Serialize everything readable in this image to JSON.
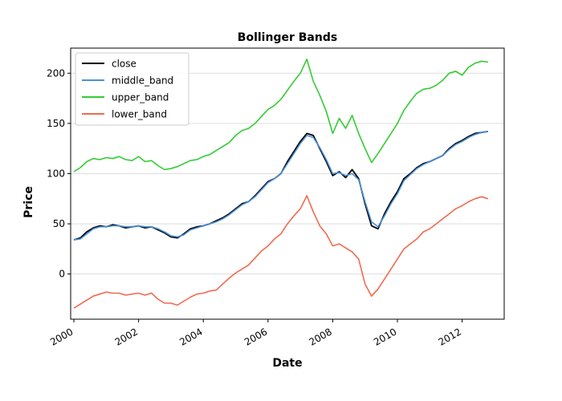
{
  "chart_data": {
    "type": "line",
    "title": "Bollinger Bands",
    "xlabel": "Date",
    "ylabel": "Price",
    "xlim": [
      1999.9,
      2013.3
    ],
    "ylim": [
      -45,
      225
    ],
    "x_ticks": [
      2000,
      2002,
      2004,
      2006,
      2008,
      2010,
      2012
    ],
    "y_ticks": [
      0,
      50,
      100,
      150,
      200
    ],
    "grid": "horizontal",
    "legend_position": "top-left",
    "x": [
      2000.0,
      2000.2,
      2000.4,
      2000.6,
      2000.8,
      2001.0,
      2001.2,
      2001.4,
      2001.6,
      2001.8,
      2002.0,
      2002.2,
      2002.4,
      2002.6,
      2002.8,
      2003.0,
      2003.2,
      2003.4,
      2003.6,
      2003.8,
      2004.0,
      2004.2,
      2004.4,
      2004.6,
      2004.8,
      2005.0,
      2005.2,
      2005.4,
      2005.6,
      2005.8,
      2006.0,
      2006.2,
      2006.4,
      2006.6,
      2006.8,
      2007.0,
      2007.2,
      2007.4,
      2007.6,
      2007.8,
      2008.0,
      2008.2,
      2008.4,
      2008.6,
      2008.8,
      2009.0,
      2009.2,
      2009.4,
      2009.6,
      2009.8,
      2010.0,
      2010.2,
      2010.4,
      2010.6,
      2010.8,
      2011.0,
      2011.2,
      2011.4,
      2011.6,
      2011.8,
      2012.0,
      2012.2,
      2012.4,
      2012.6,
      2012.8
    ],
    "series": [
      {
        "name": "close",
        "color": "#000000",
        "values": [
          34,
          36,
          42,
          46,
          48,
          47,
          49,
          48,
          46,
          47,
          48,
          46,
          47,
          44,
          41,
          37,
          36,
          40,
          45,
          47,
          48,
          50,
          53,
          56,
          60,
          65,
          70,
          72,
          78,
          85,
          92,
          95,
          100,
          112,
          122,
          132,
          140,
          138,
          125,
          112,
          98,
          102,
          96,
          104,
          95,
          70,
          48,
          45,
          60,
          72,
          82,
          95,
          100,
          106,
          110,
          112,
          115,
          118,
          125,
          130,
          133,
          137,
          140,
          141,
          142
        ]
      },
      {
        "name": "middle_band",
        "color": "#4a90d9",
        "values": [
          34,
          35,
          40,
          45,
          47,
          47,
          48,
          48,
          47,
          47,
          48,
          47,
          47,
          45,
          42,
          38,
          37,
          39,
          44,
          46,
          48,
          50,
          52,
          55,
          59,
          64,
          69,
          72,
          77,
          84,
          91,
          95,
          100,
          110,
          120,
          130,
          138,
          136,
          126,
          114,
          100,
          101,
          98,
          100,
          94,
          72,
          52,
          47,
          58,
          70,
          80,
          93,
          99,
          105,
          109,
          112,
          115,
          118,
          124,
          129,
          132,
          136,
          139,
          141,
          142
        ]
      },
      {
        "name": "upper_band",
        "color": "#33cc33",
        "values": [
          102,
          106,
          112,
          115,
          114,
          116,
          115,
          117,
          114,
          113,
          117,
          112,
          113,
          108,
          104,
          105,
          107,
          110,
          113,
          114,
          117,
          119,
          123,
          127,
          131,
          138,
          143,
          145,
          150,
          157,
          164,
          168,
          174,
          183,
          192,
          200,
          214,
          192,
          178,
          162,
          140,
          155,
          145,
          158,
          140,
          125,
          111,
          120,
          130,
          140,
          150,
          163,
          172,
          180,
          184,
          185,
          188,
          193,
          200,
          202,
          198,
          206,
          210,
          212,
          211
        ]
      },
      {
        "name": "lower_band",
        "color": "#f26a4f",
        "values": [
          -34,
          -30,
          -26,
          -22,
          -20,
          -18,
          -19,
          -19,
          -21,
          -20,
          -19,
          -21,
          -19,
          -25,
          -29,
          -29,
          -31,
          -27,
          -23,
          -20,
          -19,
          -17,
          -16,
          -10,
          -4,
          1,
          5,
          9,
          16,
          23,
          28,
          35,
          40,
          50,
          58,
          65,
          78,
          62,
          48,
          40,
          28,
          30,
          26,
          22,
          15,
          -10,
          -22,
          -15,
          -5,
          5,
          15,
          25,
          30,
          35,
          42,
          45,
          50,
          55,
          60,
          65,
          68,
          72,
          75,
          77,
          75
        ]
      }
    ]
  }
}
